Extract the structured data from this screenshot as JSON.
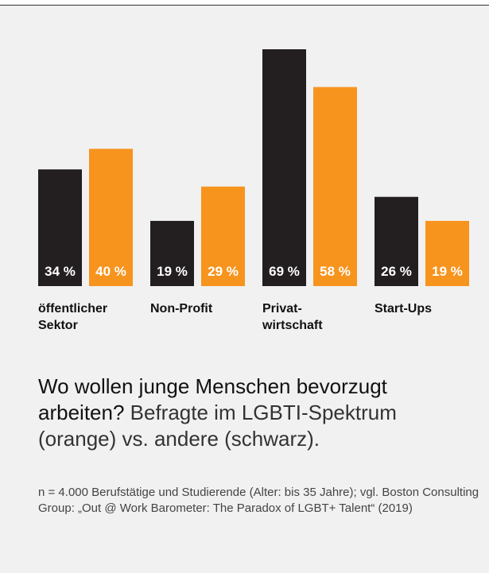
{
  "chart_data": {
    "type": "bar",
    "categories": [
      "öffentlicher\nSektor",
      "Non-Profit",
      "Privat-\nwirtschaft",
      "Start-Ups"
    ],
    "series": [
      {
        "color": "#231f20",
        "values": [
          34,
          19,
          69,
          26
        ],
        "value_labels": [
          "34 %",
          "19 %",
          "69 %",
          "26 %"
        ]
      },
      {
        "color": "#f7941d",
        "values": [
          40,
          29,
          58,
          19
        ],
        "value_labels": [
          "40 %",
          "29 %",
          "58 %",
          "19 %"
        ]
      }
    ],
    "title": "Wo wollen junge Menschen bevorzugt arbeiten?",
    "subtitle": "Befragte im LGBTI-Spektrum (orange) vs. andere (schwarz).",
    "note": "n = 4.000 Berufstätige und Studierende (Alter: bis 35 Jahre); vgl. Boston Consulting Group: „Out @ Work Barometer: The Paradox of LGBT+ Talent“ (2019)"
  }
}
